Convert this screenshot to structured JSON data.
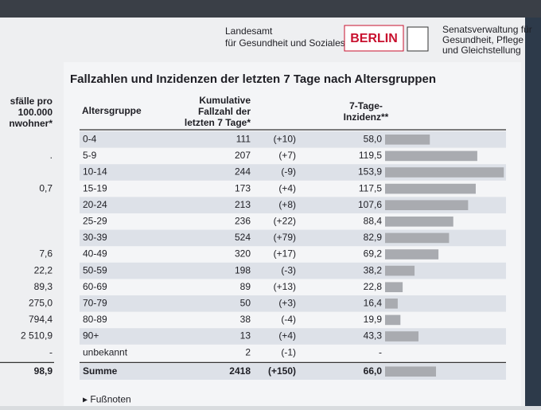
{
  "header": {
    "agency_line1": "Landesamt",
    "agency_line2": "für Gesundheit und Soziales",
    "logo": "BERLIN",
    "senate_line1": "Senatsverwaltung für",
    "senate_line2": "Gesundheit, Pflege",
    "senate_line3": "und Gleichstellung"
  },
  "title": "Fallzahlen und Inzidenzen der letzten 7 Tage nach Altersgruppen",
  "left_column": {
    "header": [
      "sfälle pro",
      "100.000",
      "nwohner*"
    ],
    "values": [
      null,
      ".",
      null,
      "0,7",
      null,
      null,
      null,
      "7,6",
      "22,2",
      "89,3",
      "275,0",
      "794,4",
      "2 510,9",
      "-"
    ],
    "total": "98,9"
  },
  "table": {
    "columns": {
      "group": "Altersgruppe",
      "cases": [
        "Kumulative",
        "Fallzahl der",
        "letzten 7 Tage*"
      ],
      "incidence": [
        "7-Tage-",
        "Inzidenz**"
      ]
    },
    "rows": [
      {
        "group": "0-4",
        "cases": 111,
        "change": "(+10)",
        "incidence": {
          "value": 58.0,
          "label": "58,0"
        }
      },
      {
        "group": "5-9",
        "cases": 207,
        "change": "(+7)",
        "incidence": {
          "value": 119.5,
          "label": "119,5"
        }
      },
      {
        "group": "10-14",
        "cases": 244,
        "change": "(-9)",
        "incidence": {
          "value": 153.9,
          "label": "153,9"
        }
      },
      {
        "group": "15-19",
        "cases": 173,
        "change": "(+4)",
        "incidence": {
          "value": 117.5,
          "label": "117,5"
        }
      },
      {
        "group": "20-24",
        "cases": 213,
        "change": "(+8)",
        "incidence": {
          "value": 107.6,
          "label": "107,6"
        }
      },
      {
        "group": "25-29",
        "cases": 236,
        "change": "(+22)",
        "incidence": {
          "value": 88.4,
          "label": "88,4"
        }
      },
      {
        "group": "30-39",
        "cases": 524,
        "change": "(+79)",
        "incidence": {
          "value": 82.9,
          "label": "82,9"
        }
      },
      {
        "group": "40-49",
        "cases": 320,
        "change": "(+17)",
        "incidence": {
          "value": 69.2,
          "label": "69,2"
        }
      },
      {
        "group": "50-59",
        "cases": 198,
        "change": "(-3)",
        "incidence": {
          "value": 38.2,
          "label": "38,2"
        }
      },
      {
        "group": "60-69",
        "cases": 89,
        "change": "(+13)",
        "incidence": {
          "value": 22.8,
          "label": "22,8"
        }
      },
      {
        "group": "70-79",
        "cases": 50,
        "change": "(+3)",
        "incidence": {
          "value": 16.4,
          "label": "16,4"
        }
      },
      {
        "group": "80-89",
        "cases": 38,
        "change": "(-4)",
        "incidence": {
          "value": 19.9,
          "label": "19,9"
        }
      },
      {
        "group": "90+",
        "cases": 13,
        "change": "(+4)",
        "incidence": {
          "value": 43.3,
          "label": "43,3"
        }
      },
      {
        "group": "unbekannt",
        "cases": 2,
        "change": "(-1)",
        "incidence": "-"
      }
    ],
    "total": {
      "group": "Summe",
      "cases": 2418,
      "change": "(+150)",
      "incidence": {
        "value": 66.0,
        "label": "66,0"
      }
    }
  },
  "footnotes": "▸ Fußnoten"
}
